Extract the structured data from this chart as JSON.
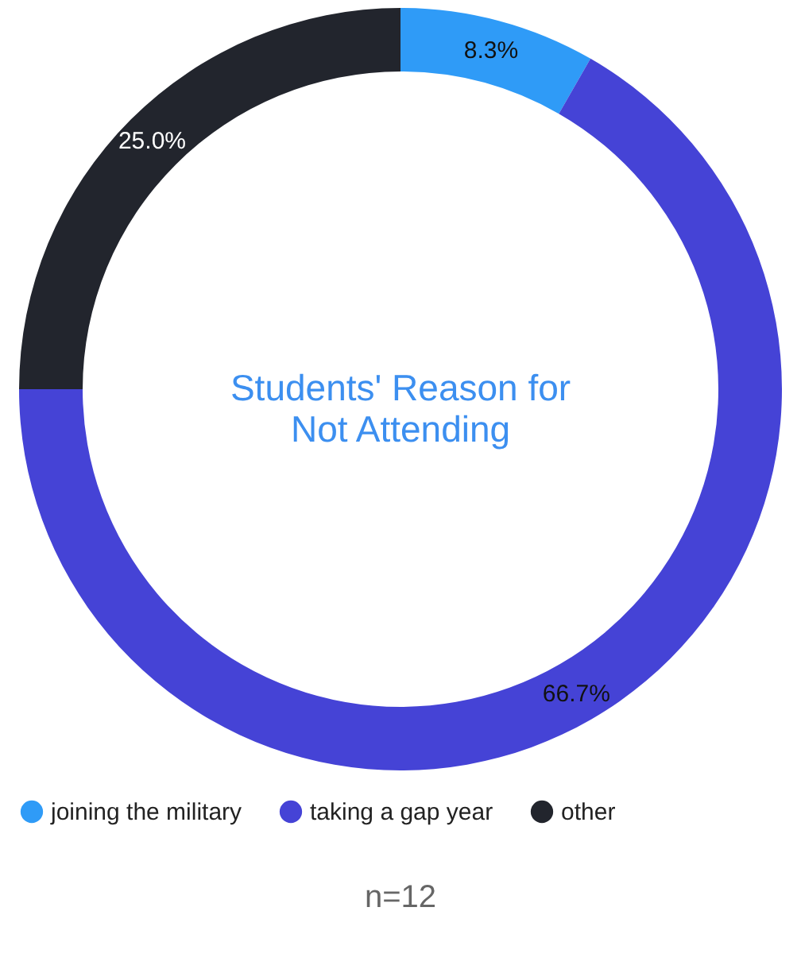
{
  "chart_data": {
    "type": "donut",
    "title": "Students' Reason for Not Attending",
    "categories": [
      "joining the military",
      "taking a gap year",
      "other"
    ],
    "values": [
      8.3,
      66.7,
      25.0
    ],
    "colors": [
      "#2f9bf7",
      "#4543d6",
      "#22252d"
    ],
    "value_labels": [
      "8.3%",
      "66.7%",
      "25.0%"
    ],
    "legend": "bottom",
    "annotations": [
      "n=12"
    ]
  }
}
